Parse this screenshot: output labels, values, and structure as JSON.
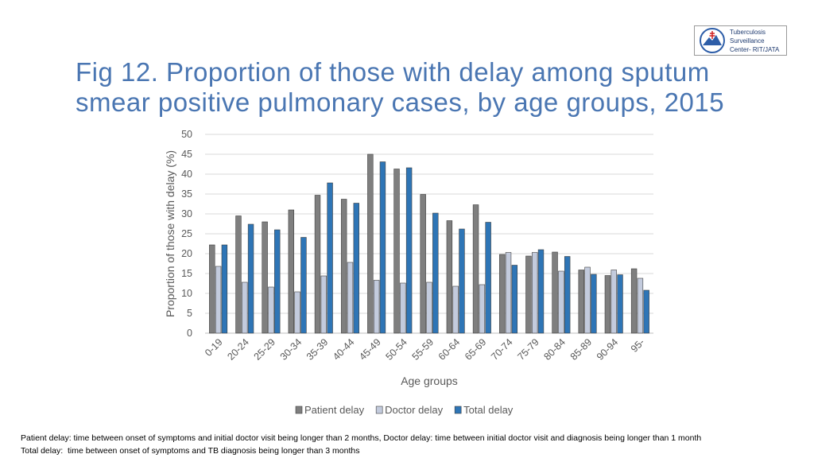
{
  "logo": {
    "lines": [
      "Tuberculosis",
      "Surveillance",
      "Center- RIT/JATA"
    ]
  },
  "chart_data": {
    "type": "bar",
    "title": "Fig 12. Proportion of those with delay among sputum smear positive pulmonary cases, by age groups, 2015",
    "y_label": "Proportion of those with delay (%)",
    "x_label": "Age groups",
    "categories": [
      "0-19",
      "20-24",
      "25-29",
      "30-34",
      "35-39",
      "40-44",
      "45-49",
      "50-54",
      "55-59",
      "60-64",
      "65-69",
      "70-74",
      "75-79",
      "80-84",
      "85-89",
      "90-94",
      "95-"
    ],
    "series": [
      {
        "name": "Patient delay",
        "color": "#7f7f7f",
        "values": [
          22.2,
          29.5,
          28,
          31,
          34.7,
          33.7,
          45,
          41.3,
          34.9,
          28.3,
          32.3,
          19.8,
          19.4,
          20.4,
          15.9,
          14.5,
          16.2
        ]
      },
      {
        "name": "Doctor delay",
        "color": "#c3cbdd",
        "values": [
          16.8,
          12.8,
          11.6,
          10.4,
          14.4,
          17.8,
          13.3,
          12.6,
          12.8,
          11.8,
          12.2,
          20.3,
          20.3,
          15.6,
          16.6,
          15.9,
          13.8
        ]
      },
      {
        "name": "Total delay",
        "color": "#2e75b6",
        "values": [
          22.2,
          27.4,
          26,
          24.1,
          37.8,
          32.7,
          43.1,
          41.6,
          30.2,
          26.2,
          27.9,
          17.1,
          21,
          19.3,
          14.8,
          14.7,
          10.8
        ]
      }
    ],
    "ylim": [
      0,
      50
    ],
    "yticks": [
      0,
      5,
      10,
      15,
      20,
      25,
      30,
      35,
      40,
      45,
      50
    ],
    "grid": true,
    "legend": "bottom"
  },
  "footnotes": [
    "Patient delay: time between onset of symptoms and initial doctor visit being longer than 2 months, Doctor delay: time between initial doctor visit and diagnosis being longer than 1 month",
    "Total delay:  time between onset of symptoms and TB diagnosis being longer than 3 months"
  ]
}
